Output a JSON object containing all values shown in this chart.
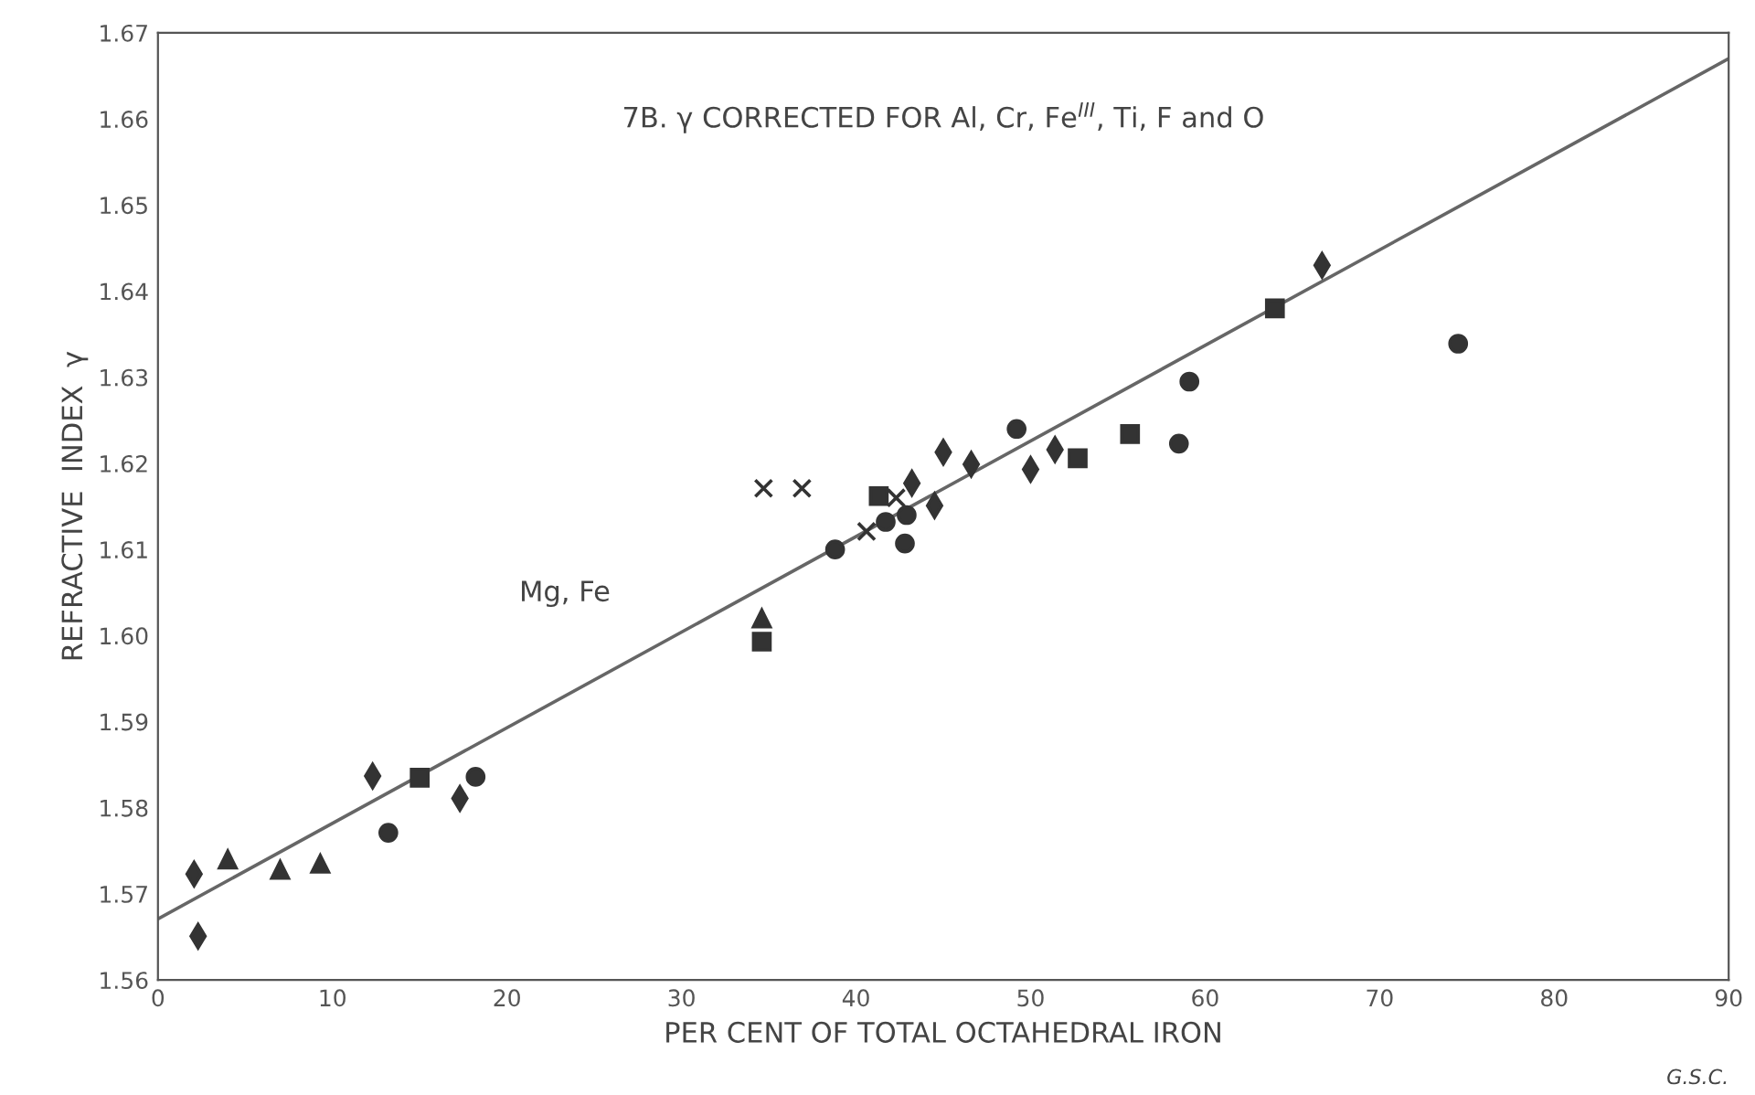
{
  "chart_data": {
    "type": "scatter",
    "title": "7B. γ CORRECTED FOR Al, Cr, Fe$^{III}$, Ti, F and O",
    "xlabel": "PER CENT OF TOTAL OCTAHEDRAL IRON",
    "ylabel": "REFRACTIVE  INDEX  γ",
    "xlim": [
      0,
      90
    ],
    "ylim": [
      1.56,
      1.67
    ],
    "xticks": [
      0,
      10,
      20,
      30,
      40,
      50,
      60,
      70,
      80,
      90
    ],
    "yticks": [
      1.56,
      1.57,
      1.58,
      1.59,
      {
        "value": 1.6,
        "label": "1.60"
      },
      1.61,
      1.62,
      1.63,
      1.64,
      1.65,
      1.66,
      1.67
    ],
    "grid": false,
    "series": [
      {
        "type": "line",
        "color": "#666666",
        "x": [
          0,
          90
        ],
        "values": [
          1.5671,
          1.667
        ],
        "marker": "none",
        "line_style": "solid"
      },
      {
        "color": "#333333",
        "marker": "diamond",
        "x": [
          2.07,
          12.3,
          2.3,
          17.3,
          43.2,
          66.7,
          44.5,
          45.0,
          46.6,
          50.0,
          51.4
        ],
        "values": [
          1.5723,
          1.5837,
          1.5651,
          1.5811,
          1.6177,
          1.643,
          1.6151,
          1.6213,
          1.6199,
          1.6193,
          1.6216
        ]
      },
      {
        "color": "#333333",
        "marker": "triangle",
        "x": [
          4.0,
          7.0,
          9.3,
          34.6
        ],
        "values": [
          1.574,
          1.5728,
          1.5735,
          1.602
        ]
      },
      {
        "color": "#333333",
        "marker": "circle",
        "x": [
          13.2,
          18.2,
          38.8,
          41.7,
          42.8,
          42.9,
          49.2,
          58.5,
          59.1,
          74.5
        ],
        "values": [
          1.5771,
          1.5836,
          1.61,
          1.6132,
          1.6107,
          1.614,
          1.624,
          1.6223,
          1.6295,
          1.6339
        ]
      },
      {
        "color": "#333333",
        "marker": "square",
        "x": [
          15.0,
          64.0,
          34.6,
          41.3,
          52.7,
          55.7
        ],
        "values": [
          1.5835,
          1.638,
          1.5993,
          1.6162,
          1.6206,
          1.6234
        ]
      },
      {
        "color": "#333333",
        "marker": "cross",
        "x": [
          34.7,
          36.9,
          40.6,
          42.3
        ],
        "values": [
          1.6171,
          1.6171,
          1.6121,
          1.616
        ]
      }
    ],
    "annotations": [
      "Mg, Fe",
      "G.S.C."
    ]
  }
}
